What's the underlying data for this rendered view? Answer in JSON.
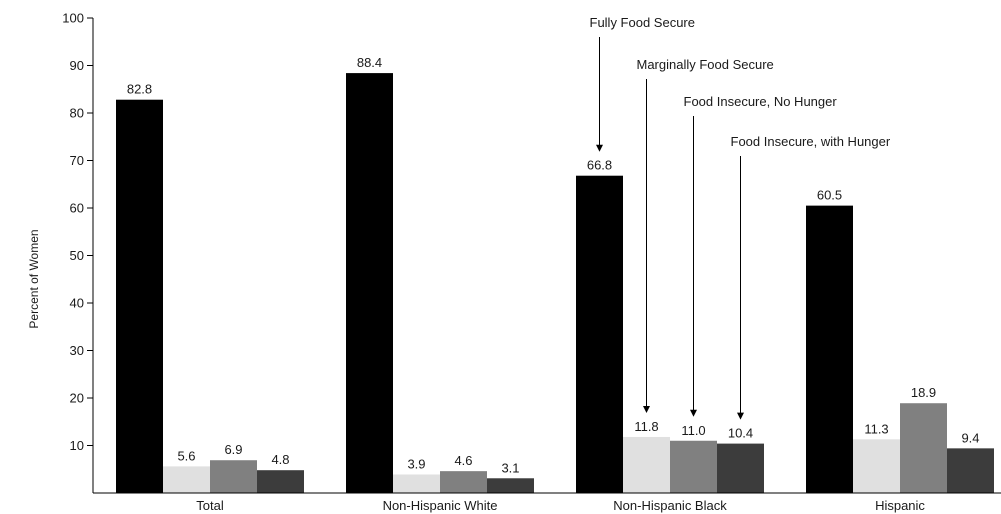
{
  "chart_data": {
    "type": "bar",
    "ylabel": "Percent of Women",
    "xlabel": "",
    "ylim": [
      0,
      100
    ],
    "yticks": [
      10,
      20,
      30,
      40,
      50,
      60,
      70,
      80,
      90,
      100
    ],
    "categories": [
      "Total",
      "Non-Hispanic White",
      "Non-Hispanic Black",
      "Hispanic"
    ],
    "series": [
      {
        "name": "Fully Food Secure",
        "color": "#000000",
        "values": [
          82.8,
          88.4,
          66.8,
          60.5
        ]
      },
      {
        "name": "Marginally Food Secure",
        "color": "#e0e0e0",
        "values": [
          5.6,
          3.9,
          11.8,
          11.3
        ]
      },
      {
        "name": "Food Insecure, No Hunger",
        "color": "#808080",
        "values": [
          6.9,
          4.6,
          11.0,
          18.9
        ]
      },
      {
        "name": "Food Insecure, with Hunger",
        "color": "#3c3c3c",
        "values": [
          4.8,
          3.1,
          10.4,
          9.4
        ]
      }
    ],
    "value_labels": [
      [
        "82.8",
        "88.4",
        "66.8",
        "60.5"
      ],
      [
        "5.6",
        "3.9",
        "11.8",
        "11.3"
      ],
      [
        "6.9",
        "4.6",
        "11.0",
        "18.9"
      ],
      [
        "4.8",
        "3.1",
        "10.4",
        "9.4"
      ]
    ],
    "legend": "callout arrows pointing to Non-Hispanic Black bars",
    "grid": false
  }
}
